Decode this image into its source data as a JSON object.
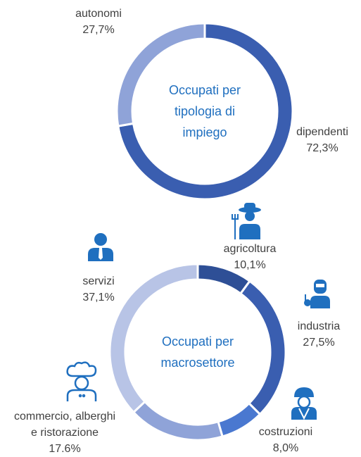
{
  "chart_data": [
    {
      "type": "donut",
      "title": "Occupati per tipologia di impiego",
      "categories": [
        "dipendenti",
        "autonomi"
      ],
      "values": [
        72.3,
        27.7
      ],
      "value_labels": [
        "72,3%",
        "27,7%"
      ],
      "colors": [
        "#3a5eb0",
        "#8fa3d8"
      ]
    },
    {
      "type": "donut",
      "title": "Occupati per macrosettore",
      "categories": [
        "agricoltura",
        "industria",
        "costruzioni",
        "commercio, alberghi e ristorazione",
        "servizi"
      ],
      "values": [
        10.1,
        27.5,
        8.0,
        17.6,
        37.1
      ],
      "value_labels": [
        "10,1%",
        "27,5%",
        "8,0%",
        "17.6%",
        "37,1%"
      ],
      "colors": [
        "#2e4f96",
        "#3a5eb0",
        "#4a78d0",
        "#8fa3d8",
        "#b8c4e6"
      ]
    }
  ]
}
